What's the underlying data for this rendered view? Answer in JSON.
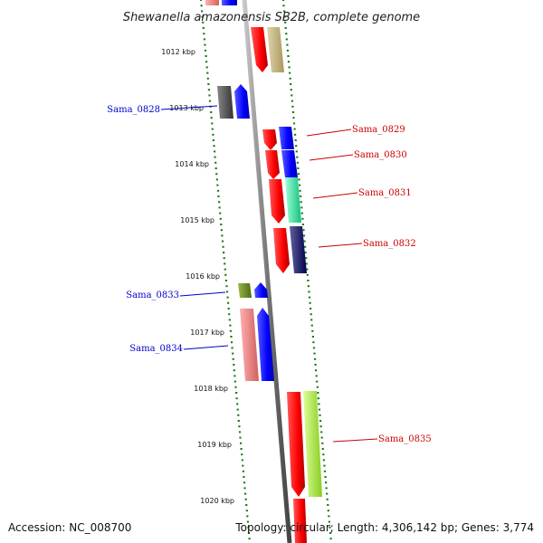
{
  "title": "Shewanella amazonensis SB2B, complete genome",
  "footer": {
    "accession": "Accession: NC_008700",
    "topology": "Topology: circular; Length: 4,306,142 bp; Genes: 3,774"
  },
  "scale_labels": [
    "1012 kbp",
    "1013 kbp",
    "1014 kbp",
    "1015 kbp",
    "1016 kbp",
    "1017 kbp",
    "1018 kbp",
    "1019 kbp",
    "1020 kbp"
  ],
  "gene_labels": [
    {
      "text": "Sama_0828",
      "side": "left",
      "color": "#0000cc"
    },
    {
      "text": "Sama_0829",
      "side": "right",
      "color": "#cc0000"
    },
    {
      "text": "Sama_0830",
      "side": "right",
      "color": "#cc0000"
    },
    {
      "text": "Sama_0831",
      "side": "right",
      "color": "#cc0000"
    },
    {
      "text": "Sama_0832",
      "side": "right",
      "color": "#cc0000"
    },
    {
      "text": "Sama_0833",
      "side": "left",
      "color": "#0000cc"
    },
    {
      "text": "Sama_0834",
      "side": "left",
      "color": "#0000cc"
    },
    {
      "text": "Sama_0835",
      "side": "right",
      "color": "#cc0000"
    }
  ],
  "colors": {
    "forward_strand": "#ff0000",
    "reverse_strand": "#0000ff",
    "backbone": "#888888",
    "tick": "#1a7a1a",
    "tan": "#c2b280",
    "dark_gray": "#555555",
    "teal": "#33ffaa",
    "navy": "#000080",
    "olive": "#6b8e23",
    "pink": "#f08080",
    "lime": "#aaff33"
  }
}
